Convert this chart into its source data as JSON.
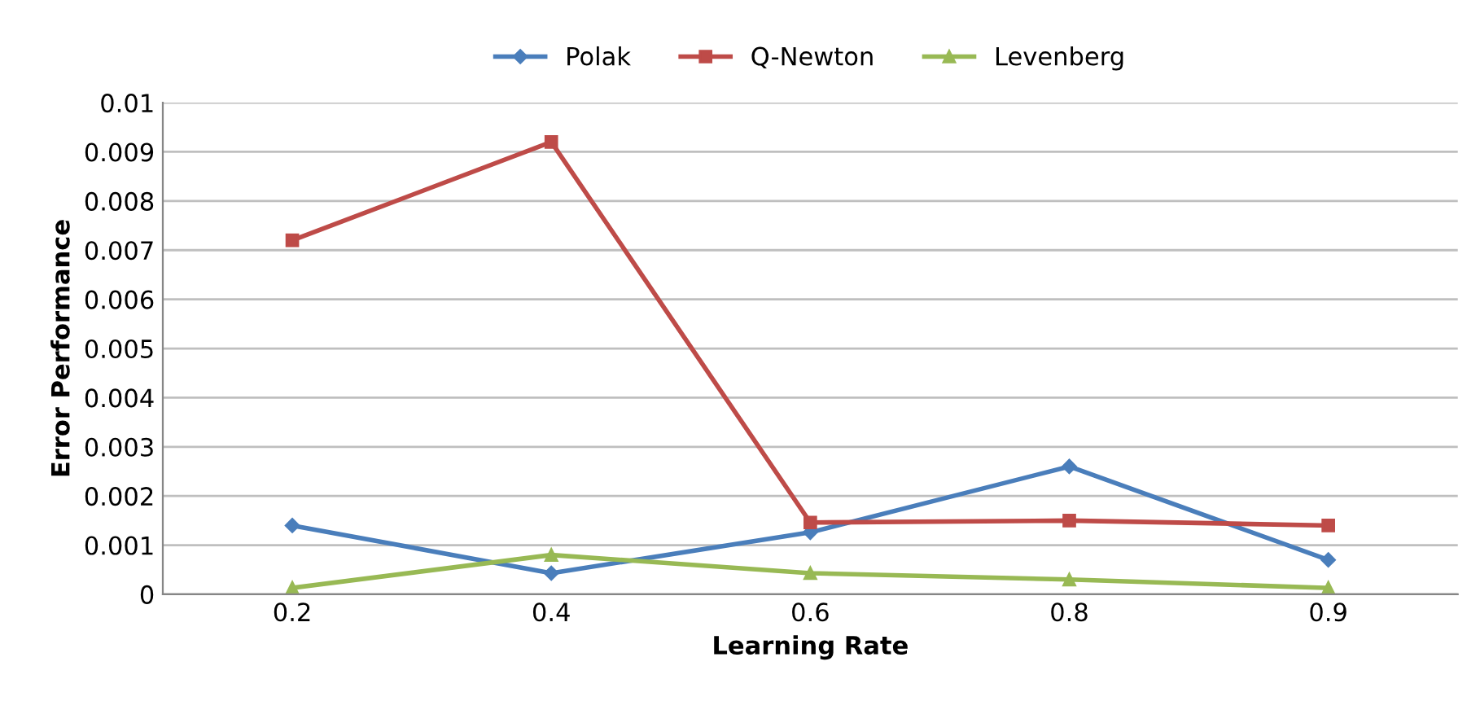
{
  "chart_data": {
    "type": "line",
    "xlabel": "Learning Rate",
    "ylabel": "Error Performance",
    "categories": [
      "0.2",
      "0.4",
      "0.6",
      "0.8",
      "0.9"
    ],
    "series": [
      {
        "name": "Polak",
        "color": "#4a7ebb",
        "marker": "diamond",
        "values": [
          0.0014,
          0.00043,
          0.00126,
          0.0026,
          0.0007
        ]
      },
      {
        "name": "Q-Newton",
        "color": "#be4b48",
        "marker": "square",
        "values": [
          0.0072,
          0.0092,
          0.00146,
          0.0015,
          0.0014
        ]
      },
      {
        "name": "Levenberg",
        "color": "#98b954",
        "marker": "triangle",
        "values": [
          0.00013,
          0.0008,
          0.00043,
          0.0003,
          0.00013
        ]
      }
    ],
    "ylim": [
      0,
      0.01
    ],
    "yticks": [
      0,
      0.001,
      0.002,
      0.003,
      0.004,
      0.005,
      0.006,
      0.007,
      0.008,
      0.009,
      0.01
    ],
    "grid": "y",
    "legend": "top",
    "line_style": "solid"
  }
}
